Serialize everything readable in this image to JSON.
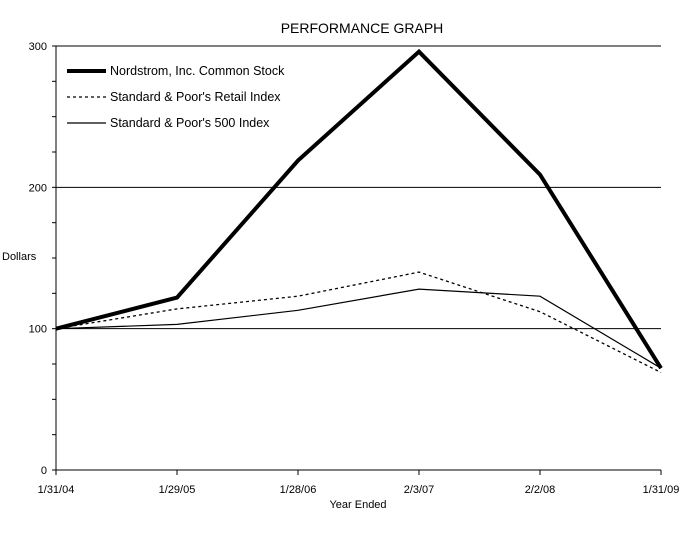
{
  "chart_data": {
    "type": "line",
    "title": "PERFORMANCE GRAPH",
    "xlabel": "Year Ended",
    "ylabel": "Dollars",
    "categories": [
      "1/31/04",
      "1/29/05",
      "1/28/06",
      "2/3/07",
      "2/2/08",
      "1/31/09"
    ],
    "yticks": [
      0,
      100,
      200,
      300
    ],
    "ylim": [
      0,
      300
    ],
    "grid": "horizontal at 100, 200",
    "legend_position": "top-left",
    "series": [
      {
        "name": "Nordstrom, Inc. Common Stock",
        "values": [
          100,
          122,
          219,
          296,
          209,
          72
        ],
        "style": "thick-solid"
      },
      {
        "name": "Standard & Poor's Retail Index",
        "values": [
          100,
          114,
          123,
          140,
          112,
          69
        ],
        "style": "dotted"
      },
      {
        "name": "Standard & Poor's 500 Index",
        "values": [
          100,
          103,
          113,
          128,
          123,
          72
        ],
        "style": "thin-solid"
      }
    ]
  }
}
